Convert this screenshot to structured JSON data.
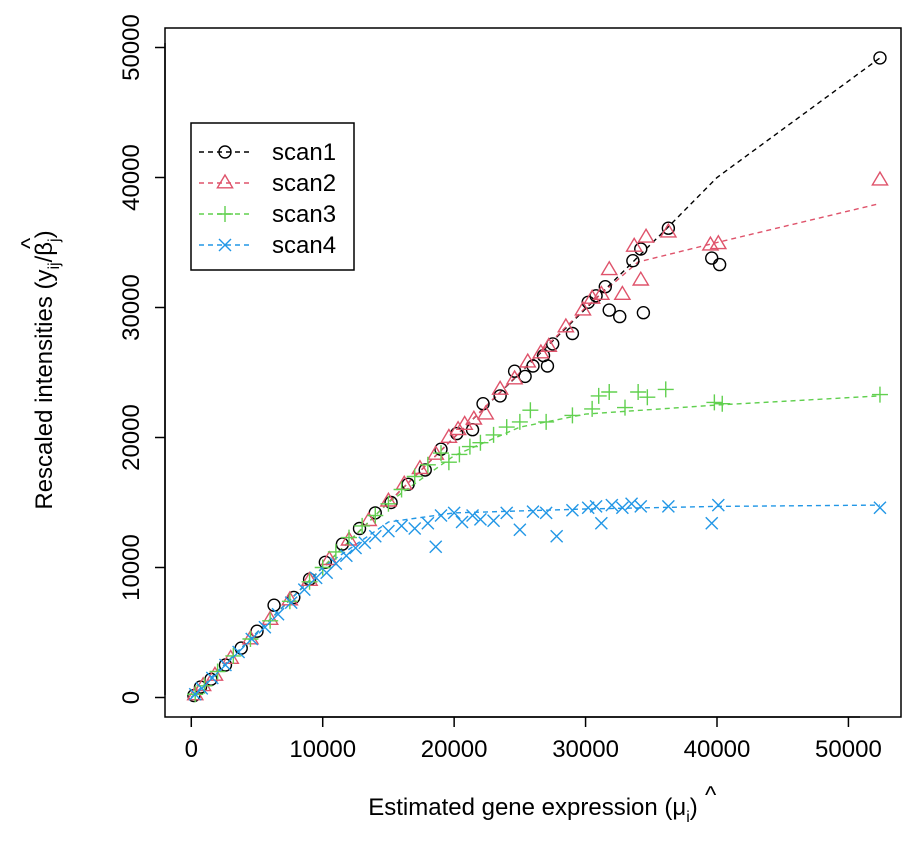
{
  "chart_data": {
    "type": "scatter",
    "xlabel": "Estimated gene expression (",
    "xlabel_symbol": "μ",
    "xlabel_hat": "^",
    "xlabel_sub": "i",
    "xlabel_close": ")",
    "ylabel": "Rescaled intensities (",
    "ylabel_y": "y",
    "ylabel_y_sub": "ij",
    "ylabel_slash": "/",
    "ylabel_symbol": "β",
    "ylabel_hat": "^",
    "ylabel_sub": "j",
    "ylabel_close": ")",
    "xlim": [
      -2000,
      54000
    ],
    "ylim": [
      -1500,
      51500
    ],
    "xticks": [
      0,
      10000,
      20000,
      30000,
      40000,
      50000
    ],
    "yticks": [
      0,
      10000,
      20000,
      30000,
      40000,
      50000
    ],
    "xtick_labels": [
      "0",
      "10000",
      "20000",
      "30000",
      "40000",
      "50000"
    ],
    "ytick_labels": [
      "0",
      "10000",
      "20000",
      "30000",
      "40000",
      "50000"
    ],
    "legend": {
      "position": "top-left",
      "entries": [
        "scan1",
        "scan2",
        "scan3",
        "scan4"
      ]
    },
    "series": [
      {
        "name": "scan1",
        "marker": "circle",
        "color": "#000000",
        "points": [
          [
            200,
            150
          ],
          [
            700,
            800
          ],
          [
            1500,
            1400
          ],
          [
            2600,
            2500
          ],
          [
            3800,
            3800
          ],
          [
            5000,
            5100
          ],
          [
            6300,
            7100
          ],
          [
            7800,
            7700
          ],
          [
            9000,
            9100
          ],
          [
            10200,
            10400
          ],
          [
            11500,
            11800
          ],
          [
            12800,
            13000
          ],
          [
            14000,
            14200
          ],
          [
            15200,
            15000
          ],
          [
            16500,
            16400
          ],
          [
            17800,
            17500
          ],
          [
            19000,
            19100
          ],
          [
            20200,
            20300
          ],
          [
            21400,
            20600
          ],
          [
            22200,
            22600
          ],
          [
            23500,
            23200
          ],
          [
            24600,
            25100
          ],
          [
            25400,
            24700
          ],
          [
            26000,
            25500
          ],
          [
            26800,
            26300
          ],
          [
            27100,
            25500
          ],
          [
            27500,
            27200
          ],
          [
            29000,
            28000
          ],
          [
            30200,
            30400
          ],
          [
            30800,
            30900
          ],
          [
            31500,
            31600
          ],
          [
            31800,
            29800
          ],
          [
            32600,
            29300
          ],
          [
            33600,
            33600
          ],
          [
            34200,
            34500
          ],
          [
            34400,
            29600
          ],
          [
            36300,
            36100
          ],
          [
            39600,
            33800
          ],
          [
            40200,
            33300
          ],
          [
            52400,
            49200
          ]
        ],
        "curve": [
          [
            0,
            0
          ],
          [
            10000,
            10000
          ],
          [
            20000,
            20000
          ],
          [
            30000,
            29900
          ],
          [
            36000,
            35900
          ],
          [
            40000,
            40000
          ],
          [
            52400,
            49200
          ]
        ]
      },
      {
        "name": "scan2",
        "marker": "triangle",
        "color": "#DF536B",
        "points": [
          [
            300,
            200
          ],
          [
            900,
            900
          ],
          [
            1800,
            1700
          ],
          [
            3000,
            3000
          ],
          [
            4500,
            4500
          ],
          [
            6000,
            6000
          ],
          [
            7500,
            7500
          ],
          [
            9000,
            9000
          ],
          [
            10500,
            10600
          ],
          [
            12000,
            12100
          ],
          [
            13500,
            13600
          ],
          [
            15000,
            15100
          ],
          [
            16200,
            16400
          ],
          [
            17400,
            17600
          ],
          [
            18600,
            18700
          ],
          [
            19600,
            20000
          ],
          [
            20300,
            20600
          ],
          [
            20800,
            21000
          ],
          [
            21500,
            21400
          ],
          [
            22400,
            21800
          ],
          [
            23500,
            23700
          ],
          [
            24600,
            24500
          ],
          [
            25600,
            25800
          ],
          [
            26600,
            26500
          ],
          [
            27200,
            27000
          ],
          [
            28500,
            28500
          ],
          [
            29800,
            29800
          ],
          [
            30500,
            30700
          ],
          [
            31200,
            31000
          ],
          [
            31800,
            32900
          ],
          [
            32800,
            31000
          ],
          [
            33700,
            34700
          ],
          [
            34200,
            32100
          ],
          [
            34600,
            35400
          ],
          [
            36300,
            35800
          ],
          [
            39500,
            34800
          ],
          [
            40100,
            34900
          ],
          [
            52400,
            39800
          ]
        ],
        "curve": [
          [
            0,
            0
          ],
          [
            10000,
            10000
          ],
          [
            20000,
            20000
          ],
          [
            30000,
            30000
          ],
          [
            34000,
            33500
          ],
          [
            40000,
            35000
          ],
          [
            52400,
            38000
          ]
        ]
      },
      {
        "name": "scan3",
        "marker": "plus",
        "color": "#61D04F",
        "points": [
          [
            300,
            250
          ],
          [
            1000,
            900
          ],
          [
            2000,
            2000
          ],
          [
            3200,
            3200
          ],
          [
            4500,
            4500
          ],
          [
            6000,
            5900
          ],
          [
            7500,
            7400
          ],
          [
            9000,
            8900
          ],
          [
            10000,
            10000
          ],
          [
            11000,
            11200
          ],
          [
            12000,
            12300
          ],
          [
            13000,
            13200
          ],
          [
            14000,
            14000
          ],
          [
            15000,
            14900
          ],
          [
            16000,
            16000
          ],
          [
            17000,
            17000
          ],
          [
            18000,
            17900
          ],
          [
            19000,
            18800
          ],
          [
            19600,
            18100
          ],
          [
            20400,
            18700
          ],
          [
            21200,
            19300
          ],
          [
            22000,
            19600
          ],
          [
            23000,
            20200
          ],
          [
            24000,
            20800
          ],
          [
            25000,
            21200
          ],
          [
            25800,
            22100
          ],
          [
            27000,
            21200
          ],
          [
            29000,
            21700
          ],
          [
            30500,
            22200
          ],
          [
            31000,
            23200
          ],
          [
            31800,
            23500
          ],
          [
            33000,
            22300
          ],
          [
            34000,
            23500
          ],
          [
            34700,
            23100
          ],
          [
            36100,
            23700
          ],
          [
            39800,
            22700
          ],
          [
            40400,
            22600
          ],
          [
            52400,
            23300
          ]
        ],
        "curve": [
          [
            0,
            0
          ],
          [
            10000,
            10000
          ],
          [
            15000,
            15000
          ],
          [
            20000,
            18600
          ],
          [
            25000,
            20800
          ],
          [
            30000,
            21800
          ],
          [
            40000,
            22500
          ],
          [
            52400,
            23200
          ]
        ]
      },
      {
        "name": "scan4",
        "marker": "cross",
        "color": "#2297E6",
        "points": [
          [
            300,
            250
          ],
          [
            800,
            700
          ],
          [
            1600,
            1500
          ],
          [
            2600,
            2500
          ],
          [
            3600,
            3500
          ],
          [
            4600,
            4500
          ],
          [
            5600,
            5400
          ],
          [
            6600,
            6400
          ],
          [
            7600,
            7300
          ],
          [
            8600,
            8300
          ],
          [
            9500,
            9200
          ],
          [
            10300,
            9600
          ],
          [
            11000,
            10300
          ],
          [
            11800,
            10900
          ],
          [
            12500,
            11500
          ],
          [
            13200,
            11900
          ],
          [
            14000,
            12400
          ],
          [
            15000,
            12800
          ],
          [
            16000,
            13200
          ],
          [
            17000,
            13000
          ],
          [
            18000,
            13400
          ],
          [
            18600,
            11600
          ],
          [
            19000,
            14000
          ],
          [
            20000,
            14200
          ],
          [
            20600,
            13500
          ],
          [
            21400,
            14000
          ],
          [
            22000,
            13700
          ],
          [
            23000,
            13600
          ],
          [
            24000,
            14200
          ],
          [
            25000,
            12900
          ],
          [
            26000,
            14300
          ],
          [
            27000,
            14200
          ],
          [
            27800,
            12400
          ],
          [
            29000,
            14400
          ],
          [
            30200,
            14600
          ],
          [
            30800,
            14700
          ],
          [
            31200,
            13400
          ],
          [
            32000,
            14800
          ],
          [
            32800,
            14600
          ],
          [
            33500,
            14900
          ],
          [
            34200,
            14700
          ],
          [
            36300,
            14700
          ],
          [
            39600,
            13400
          ],
          [
            40100,
            14800
          ],
          [
            52400,
            14600
          ]
        ],
        "curve": [
          [
            0,
            0
          ],
          [
            10000,
            10000
          ],
          [
            15000,
            13500
          ],
          [
            20000,
            14200
          ],
          [
            30000,
            14500
          ],
          [
            40000,
            14700
          ],
          [
            52400,
            14800
          ]
        ]
      }
    ]
  }
}
